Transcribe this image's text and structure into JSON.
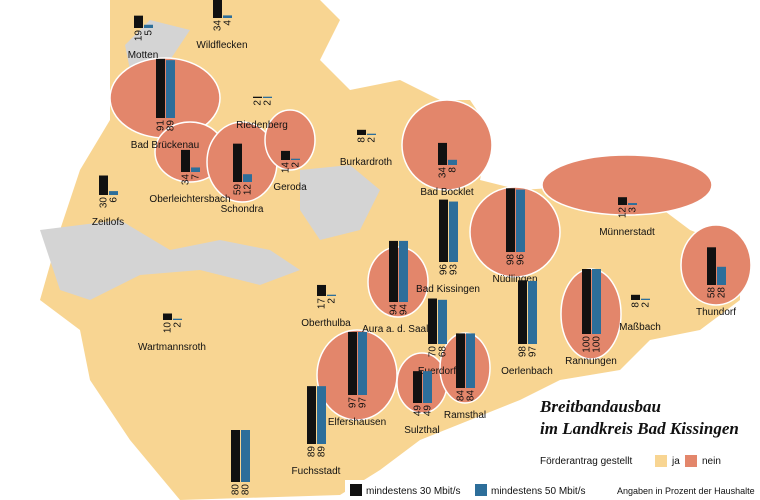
{
  "legend": {
    "title_line1": "Breitbandausbau",
    "title_line2": "im Landkreis Bad Kissingen",
    "status_label": "Förderantrag gestellt",
    "yes": "ja",
    "no": "nein",
    "series1": "mindestens 30 Mbit/s",
    "series2": "mindestens 50 Mbit/s",
    "note": "Angaben in Prozent der Haushalte",
    "yes_color": "#f8d592",
    "no_color": "#e3866b",
    "series1_color": "#111111",
    "series2_color": "#2d6e9a"
  },
  "municipalities": [
    {
      "name": "Motten",
      "applied": true,
      "values": [
        19,
        5
      ]
    },
    {
      "name": "Wildflecken",
      "applied": true,
      "values": [
        34,
        4
      ]
    },
    {
      "name": "Riedenberg",
      "applied": true,
      "values": [
        2,
        2
      ]
    },
    {
      "name": "Bad Brückenau",
      "applied": false,
      "values": [
        91,
        89
      ]
    },
    {
      "name": "Burkardroth",
      "applied": true,
      "values": [
        8,
        2
      ]
    },
    {
      "name": "Oberleichtersbach",
      "applied": false,
      "values": [
        34,
        7
      ]
    },
    {
      "name": "Schondra",
      "applied": false,
      "values": [
        59,
        12
      ]
    },
    {
      "name": "Geroda",
      "applied": false,
      "values": [
        14,
        2
      ]
    },
    {
      "name": "Bad Bocklet",
      "applied": false,
      "values": [
        34,
        8
      ]
    },
    {
      "name": "Zeitlofs",
      "applied": true,
      "values": [
        30,
        6
      ]
    },
    {
      "name": "Münnerstadt",
      "applied": false,
      "values": [
        12,
        3
      ]
    },
    {
      "name": "Nüdlingen",
      "applied": false,
      "values": [
        98,
        96
      ]
    },
    {
      "name": "Bad Kissingen",
      "applied": true,
      "values": [
        96,
        93
      ]
    },
    {
      "name": "Thundorf",
      "applied": false,
      "values": [
        58,
        28
      ]
    },
    {
      "name": "Oberthulba",
      "applied": true,
      "values": [
        17,
        2
      ]
    },
    {
      "name": "Maßbach",
      "applied": true,
      "values": [
        8,
        2
      ]
    },
    {
      "name": "Aura a. d. Saale",
      "applied": false,
      "values": [
        94,
        94
      ]
    },
    {
      "name": "Wartmannsroth",
      "applied": true,
      "values": [
        10,
        2
      ]
    },
    {
      "name": "Euerdorf",
      "applied": true,
      "values": [
        70,
        68
      ]
    },
    {
      "name": "Oerlenbach",
      "applied": true,
      "values": [
        98,
        97
      ]
    },
    {
      "name": "Rannungen",
      "applied": false,
      "values": [
        100,
        100
      ]
    },
    {
      "name": "Elfershausen",
      "applied": false,
      "values": [
        97,
        97
      ]
    },
    {
      "name": "Sulzthal",
      "applied": false,
      "values": [
        49,
        49
      ]
    },
    {
      "name": "Ramsthal",
      "applied": false,
      "values": [
        84,
        84
      ]
    },
    {
      "name": "Fuchsstadt",
      "applied": true,
      "values": [
        89,
        89
      ]
    },
    {
      "name": null,
      "applied": true,
      "values": [
        80,
        80
      ]
    }
  ]
}
